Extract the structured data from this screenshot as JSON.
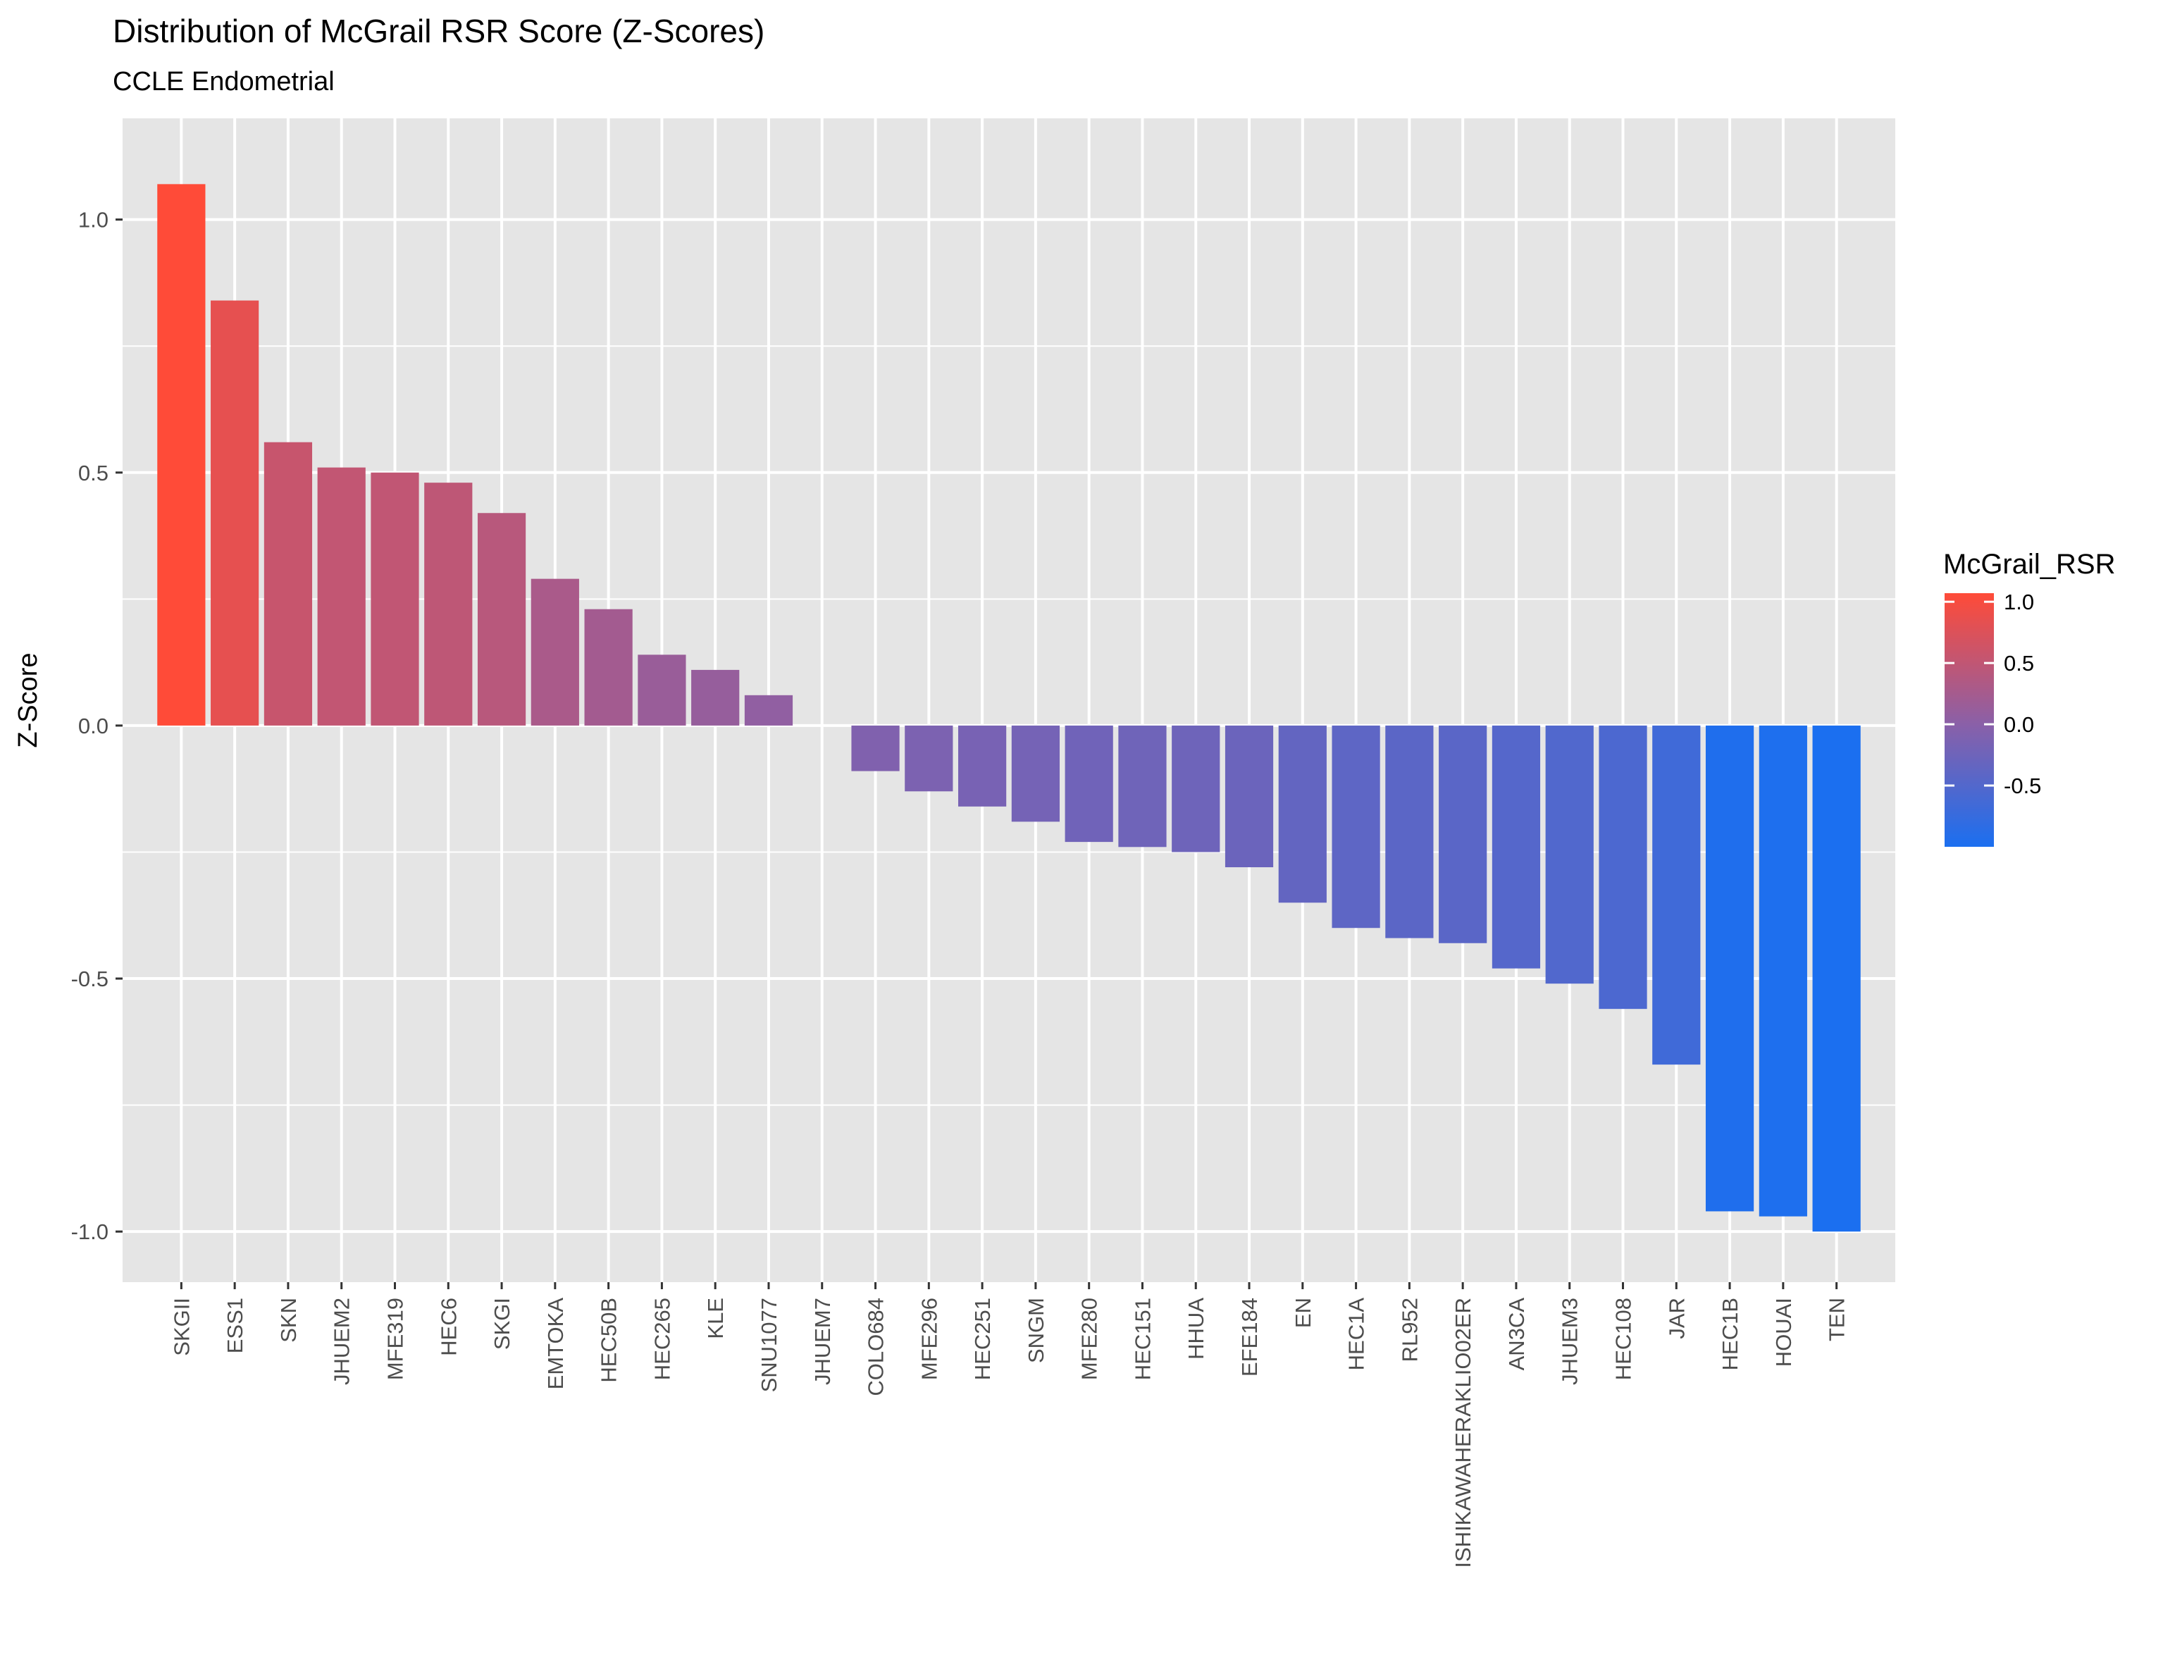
{
  "chart_data": {
    "type": "bar",
    "title": "Distribution of McGrail RSR Score (Z-Scores)",
    "subtitle": "CCLE Endometrial",
    "xlabel": "",
    "ylabel": "Z-Score",
    "ylim": [
      -1.1,
      1.2
    ],
    "yticks": [
      -1.0,
      -0.5,
      0.0,
      0.5,
      1.0
    ],
    "ytick_labels": [
      "-1.0",
      "-0.5",
      "0.0",
      "0.5",
      "1.0"
    ],
    "categories": [
      "SKGII",
      "ESS1",
      "SKN",
      "JHUEM2",
      "MFE319",
      "HEC6",
      "SKGI",
      "EMTOKA",
      "HEC50B",
      "HEC265",
      "KLE",
      "SNU1077",
      "JHUEM7",
      "COLO684",
      "MFE296",
      "HEC251",
      "SNGM",
      "MFE280",
      "HEC151",
      "HHUA",
      "EFE184",
      "EN",
      "HEC1A",
      "RL952",
      "ISHIKAWAHERAKLIO02ER",
      "AN3CA",
      "JHUEM3",
      "HEC108",
      "JAR",
      "HEC1B",
      "HOUAI",
      "TEN"
    ],
    "values": [
      1.07,
      0.84,
      0.56,
      0.51,
      0.5,
      0.48,
      0.42,
      0.29,
      0.23,
      0.14,
      0.11,
      0.06,
      0.0,
      -0.09,
      -0.13,
      -0.16,
      -0.19,
      -0.23,
      -0.24,
      -0.25,
      -0.28,
      -0.35,
      -0.4,
      -0.42,
      -0.43,
      -0.48,
      -0.51,
      -0.56,
      -0.67,
      -0.96,
      -0.97,
      -1.0
    ],
    "grid": true,
    "panel_background": "#e5e5e5",
    "grid_color": "#ffffff",
    "legend": {
      "title": "McGrail_RSR",
      "position": "right",
      "ticks": [
        1.0,
        0.5,
        0.0,
        -0.5
      ],
      "tick_labels": [
        "1.0",
        "0.5",
        "0.0",
        "-0.5"
      ],
      "range": [
        -1.0,
        1.07
      ],
      "low_color": "#1b6ff0",
      "mid_color": "#8a60a8",
      "high_color": "#ff4b38"
    }
  }
}
